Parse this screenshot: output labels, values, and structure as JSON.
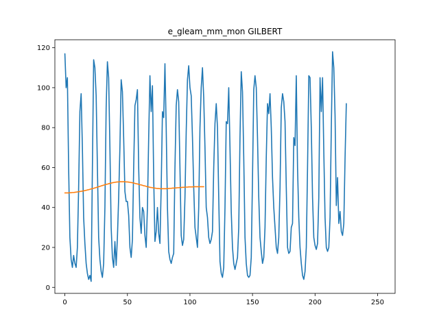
{
  "chart_data": {
    "type": "line",
    "title": "e_gleam_mm_mon GILBERT",
    "xlabel": "",
    "ylabel": "",
    "xlim": [
      -8,
      264
    ],
    "ylim": [
      -3,
      124
    ],
    "xticks": [
      0,
      50,
      100,
      150,
      200,
      250
    ],
    "yticks": [
      0,
      20,
      40,
      60,
      80,
      100,
      120
    ],
    "grid": false,
    "legend": "none",
    "colors": {
      "series1": "#1f77b4",
      "series2": "#ff7f0e"
    },
    "series": [
      {
        "values": [
          117,
          100,
          105,
          60,
          25,
          14,
          10,
          16,
          12,
          10,
          20,
          50,
          88,
          97,
          70,
          35,
          22,
          12,
          7,
          4,
          6,
          3,
          60,
          114,
          110,
          96,
          60,
          25,
          14,
          8,
          5,
          12,
          40,
          90,
          113,
          105,
          70,
          30,
          15,
          10,
          23,
          11,
          25,
          45,
          70,
          104,
          98,
          75,
          48,
          43,
          43,
          36,
          20,
          15,
          24,
          60,
          91,
          94,
          99,
          60,
          35,
          27,
          40,
          38,
          26,
          20,
          40,
          75,
          106,
          88,
          101,
          55,
          23,
          28,
          40,
          27,
          22,
          50,
          88,
          85,
          112,
          80,
          40,
          18,
          14,
          12,
          15,
          17,
          60,
          91,
          99,
          93,
          60,
          26,
          21,
          24,
          45,
          78,
          104,
          111,
          100,
          96,
          75,
          50,
          30,
          25,
          20,
          40,
          80,
          100,
          110,
          95,
          70,
          40,
          35,
          25,
          22,
          24,
          28,
          60,
          82,
          92,
          80,
          45,
          13,
          7,
          5,
          10,
          40,
          83,
          82,
          100,
          70,
          38,
          20,
          12,
          9,
          12,
          15,
          30,
          75,
          108,
          98,
          65,
          25,
          12,
          6,
          5,
          6,
          15,
          55,
          99,
          106,
          100,
          75,
          45,
          25,
          18,
          12,
          15,
          30,
          65,
          92,
          87,
          97,
          80,
          55,
          40,
          30,
          20,
          17,
          25,
          50,
          90,
          97,
          93,
          83,
          50,
          20,
          17,
          18,
          30,
          32,
          75,
          71,
          106,
          60,
          35,
          20,
          12,
          6,
          4,
          8,
          20,
          60,
          106,
          105,
          80,
          45,
          25,
          21,
          19,
          22,
          45,
          105,
          88,
          105,
          68,
          35,
          20,
          18,
          20,
          35,
          80,
          118,
          110,
          86,
          41,
          55,
          32,
          38,
          28,
          26,
          32,
          65,
          92
        ]
      },
      {
        "values": [
          47.3,
          47.3,
          47.3,
          47.3,
          47.4,
          47.4,
          47.5,
          47.5,
          47.6,
          47.7,
          47.8,
          47.9,
          48.0,
          48.1,
          48.2,
          48.3,
          48.5,
          48.6,
          48.8,
          48.9,
          49.1,
          49.3,
          49.5,
          49.6,
          49.8,
          50.0,
          50.2,
          50.4,
          50.6,
          50.8,
          51.0,
          51.2,
          51.4,
          51.6,
          51.7,
          51.9,
          52.1,
          52.2,
          52.4,
          52.5,
          52.6,
          52.7,
          52.8,
          52.8,
          52.9,
          52.9,
          52.9,
          52.9,
          52.9,
          52.8,
          52.8,
          52.7,
          52.6,
          52.5,
          52.4,
          52.2,
          52.1,
          51.9,
          51.8,
          51.6,
          51.4,
          51.3,
          51.1,
          50.9,
          50.8,
          50.6,
          50.4,
          50.3,
          50.1,
          50.0,
          49.9,
          49.8,
          49.7,
          49.6,
          49.5,
          49.5,
          49.4,
          49.4,
          49.4,
          49.4,
          49.4,
          49.4,
          49.5,
          49.5,
          49.6,
          49.6,
          49.7,
          49.7,
          49.8,
          49.8,
          49.9,
          49.9,
          50.0,
          50.0,
          50.1,
          50.1,
          50.2,
          50.2,
          50.2,
          50.3,
          50.3,
          50.3,
          50.3,
          50.4,
          50.4,
          50.4,
          50.4,
          50.4,
          50.4,
          50.4,
          50.4,
          50.4
        ]
      }
    ]
  }
}
